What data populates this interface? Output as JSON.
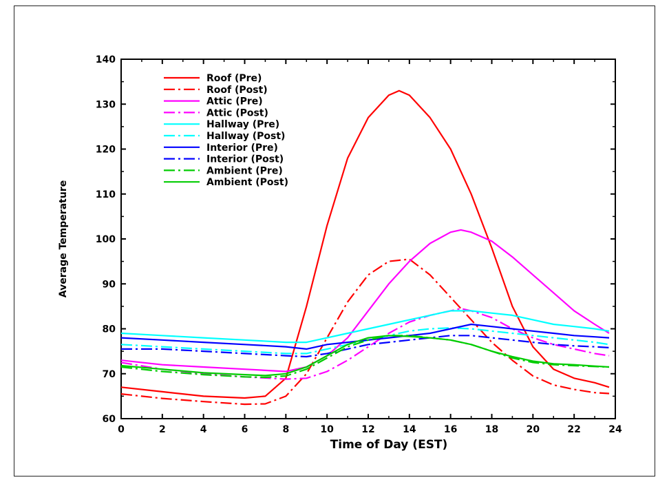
{
  "chart_data": {
    "type": "line",
    "title": "",
    "xlabel": "Time of Day (EST)",
    "ylabel": "Average Temperature",
    "xlim": [
      0,
      24
    ],
    "ylim": [
      60,
      140
    ],
    "xticks": [
      0,
      2,
      4,
      6,
      8,
      10,
      12,
      14,
      16,
      18,
      20,
      22,
      24
    ],
    "yticks": [
      60,
      70,
      80,
      90,
      100,
      110,
      120,
      130,
      140
    ],
    "grid": false,
    "legend_position": "top-left",
    "series": [
      {
        "name": "Roof (Pre)",
        "color": "#ff0000",
        "style": "solid",
        "x": [
          0,
          2,
          4,
          6,
          7,
          8,
          9,
          10,
          11,
          12,
          13,
          13.5,
          14,
          15,
          16,
          17,
          18,
          19,
          20,
          21,
          22,
          23,
          23.7
        ],
        "y": [
          67,
          66,
          65,
          64.6,
          65,
          69,
          85,
          103,
          118,
          127,
          132,
          133,
          132,
          127,
          120,
          110,
          98,
          85,
          76,
          71,
          69,
          68,
          67
        ]
      },
      {
        "name": "Roof (Post)",
        "color": "#ff0000",
        "style": "dashdot",
        "x": [
          0,
          2,
          4,
          6,
          7,
          8,
          9,
          10,
          11,
          12,
          13,
          14,
          15,
          16,
          17,
          18,
          19,
          20,
          21,
          22,
          23,
          23.7
        ],
        "y": [
          65.5,
          64.5,
          63.8,
          63.2,
          63.3,
          65,
          70,
          78,
          86,
          92,
          95,
          95.5,
          92,
          87,
          82,
          77,
          73,
          69.5,
          67.5,
          66.5,
          65.8,
          65.6
        ]
      },
      {
        "name": "Attic (Pre)",
        "color": "#ff00ff",
        "style": "solid",
        "x": [
          0,
          2,
          4,
          6,
          8,
          9,
          10,
          11,
          12,
          13,
          14,
          15,
          16,
          16.5,
          17,
          18,
          19,
          20,
          21,
          22,
          23,
          23.7
        ],
        "y": [
          73,
          72,
          71.5,
          71,
          70.5,
          71.5,
          74,
          78,
          84,
          90,
          95,
          99,
          101.5,
          102,
          101.5,
          99.5,
          96,
          92,
          88,
          84,
          81,
          79
        ]
      },
      {
        "name": "Attic (Post)",
        "color": "#ff00ff",
        "style": "dashdot",
        "x": [
          0,
          2,
          4,
          6,
          8,
          9,
          10,
          11,
          12,
          13,
          14,
          15,
          16,
          16.5,
          17,
          18,
          19,
          20,
          21,
          22,
          23,
          23.7
        ],
        "y": [
          72.5,
          71,
          70,
          69.3,
          68.8,
          69,
          70.5,
          73,
          76,
          79,
          81.5,
          83,
          84,
          84.5,
          84,
          82.5,
          80,
          78,
          76.5,
          75.5,
          74.5,
          74
        ]
      },
      {
        "name": "Hallway (Pre)",
        "color": "#00ffff",
        "style": "solid",
        "x": [
          0,
          2,
          4,
          6,
          8,
          9,
          10,
          11,
          12,
          13,
          14,
          15,
          16,
          17,
          18,
          19,
          20,
          21,
          22,
          23,
          23.7
        ],
        "y": [
          79,
          78.5,
          78,
          77.5,
          77,
          77,
          78,
          79,
          80,
          81,
          82,
          83,
          84,
          84,
          83.5,
          83,
          82,
          81,
          80.5,
          80,
          79.5
        ]
      },
      {
        "name": "Hallway (Post)",
        "color": "#00ffff",
        "style": "dashdot",
        "x": [
          0,
          2,
          4,
          6,
          8,
          9,
          10,
          11,
          12,
          13,
          14,
          15,
          16,
          17,
          18,
          19,
          20,
          21,
          22,
          23,
          23.7
        ],
        "y": [
          76.5,
          76,
          75.5,
          75,
          74.5,
          74.5,
          75.5,
          76.5,
          77.5,
          78.5,
          79.5,
          80,
          80.2,
          80,
          79.5,
          79,
          78.5,
          78,
          77.5,
          77,
          76.5
        ]
      },
      {
        "name": "Interior (Pre)",
        "color": "#0000ff",
        "style": "solid",
        "x": [
          0,
          2,
          4,
          6,
          8,
          9,
          10,
          11,
          12,
          13,
          14,
          15,
          16,
          17,
          18,
          19,
          20,
          21,
          22,
          23,
          23.7
        ],
        "y": [
          78,
          77.5,
          77,
          76.5,
          76,
          75.5,
          76.5,
          77,
          77.5,
          78,
          78.5,
          79,
          80,
          81,
          80.5,
          80,
          79.5,
          79,
          78.5,
          78.2,
          78
        ]
      },
      {
        "name": "Interior (Post)",
        "color": "#0000ff",
        "style": "dashdot",
        "x": [
          0,
          2,
          4,
          6,
          8,
          9,
          10,
          11,
          12,
          13,
          14,
          15,
          16,
          17,
          18,
          19,
          20,
          21,
          22,
          23,
          23.7
        ],
        "y": [
          75.5,
          75.5,
          75,
          74.5,
          74,
          73.8,
          74.5,
          75.5,
          76.5,
          77,
          77.5,
          78,
          78.5,
          78.5,
          78,
          77.5,
          77,
          76.5,
          76.2,
          76,
          75.8
        ]
      },
      {
        "name": "Ambient (Pre)",
        "color": "#00cc00",
        "style": "dashdot",
        "x": [
          0,
          2,
          4,
          6,
          7,
          8,
          9,
          10,
          11,
          12,
          13,
          14,
          15,
          16,
          17,
          18,
          19,
          20,
          21,
          22,
          23,
          23.7
        ],
        "y": [
          71.5,
          70.5,
          69.8,
          69.3,
          69.2,
          69.5,
          71,
          73.5,
          76,
          77.5,
          78.5,
          78.5,
          78,
          77.5,
          76.5,
          75,
          73.5,
          72.5,
          72,
          71.8,
          71.6,
          71.5
        ]
      },
      {
        "name": "Ambient (Post)",
        "color": "#00cc00",
        "style": "solid",
        "x": [
          0,
          2,
          4,
          6,
          7,
          8,
          9,
          10,
          11,
          12,
          13,
          14,
          15,
          16,
          17,
          18,
          19,
          20,
          21,
          22,
          23,
          23.7
        ],
        "y": [
          71.8,
          71,
          70.2,
          69.8,
          69.6,
          70,
          71.5,
          74,
          76.5,
          78,
          78.5,
          78.3,
          78,
          77.5,
          76.5,
          75,
          73.8,
          72.8,
          72.2,
          72,
          71.7,
          71.5
        ]
      }
    ]
  }
}
